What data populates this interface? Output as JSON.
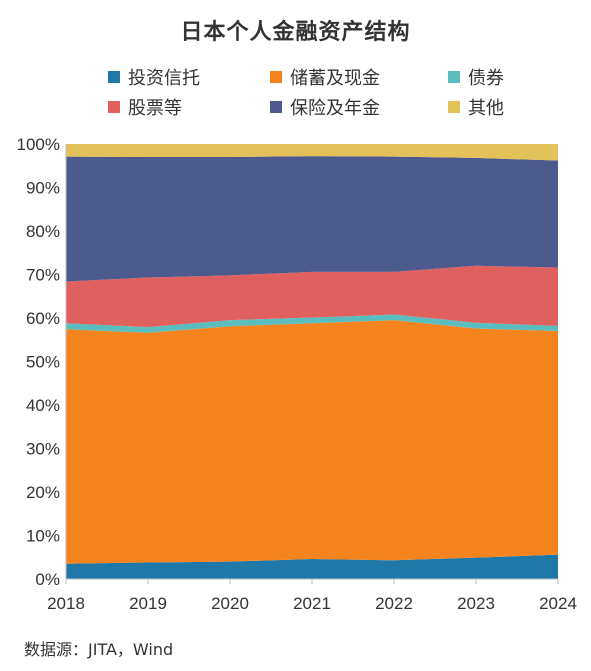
{
  "chart_data": {
    "type": "area",
    "title": "日本个人金融资产结构",
    "x": [
      "2018",
      "2019",
      "2020",
      "2021",
      "2022",
      "2023",
      "2024"
    ],
    "ylim": [
      0,
      100
    ],
    "yticks": [
      "0%",
      "10%",
      "20%",
      "30%",
      "40%",
      "50%",
      "60%",
      "70%",
      "80%",
      "90%",
      "100%"
    ],
    "ytick_values": [
      0,
      10,
      20,
      30,
      40,
      50,
      60,
      70,
      80,
      90,
      100
    ],
    "stacked_percent": true,
    "legend_position": "top",
    "series": [
      {
        "name": "投资信托",
        "color": "#1f78a8",
        "values": [
          3.5,
          3.8,
          4.0,
          4.6,
          4.3,
          4.9,
          5.6
        ]
      },
      {
        "name": "储蓄及现金",
        "color": "#f5841f",
        "values": [
          53.9,
          52.8,
          54.1,
          54.2,
          55.2,
          52.7,
          51.4
        ]
      },
      {
        "name": "债券",
        "color": "#5bbdbd",
        "values": [
          1.4,
          1.3,
          1.4,
          1.3,
          1.3,
          1.3,
          1.2
        ]
      },
      {
        "name": "股票等",
        "color": "#e06060",
        "values": [
          9.6,
          11.4,
          10.3,
          10.5,
          9.8,
          13.1,
          13.4
        ]
      },
      {
        "name": "保险及年金",
        "color": "#4d5a8e",
        "values": [
          28.7,
          27.7,
          27.2,
          26.6,
          26.5,
          24.8,
          24.6
        ]
      },
      {
        "name": "其他",
        "color": "#e3c25a",
        "values": [
          2.9,
          3.0,
          3.0,
          2.8,
          2.9,
          3.2,
          3.8
        ]
      }
    ]
  },
  "source": "数据源：JITA，Wind"
}
